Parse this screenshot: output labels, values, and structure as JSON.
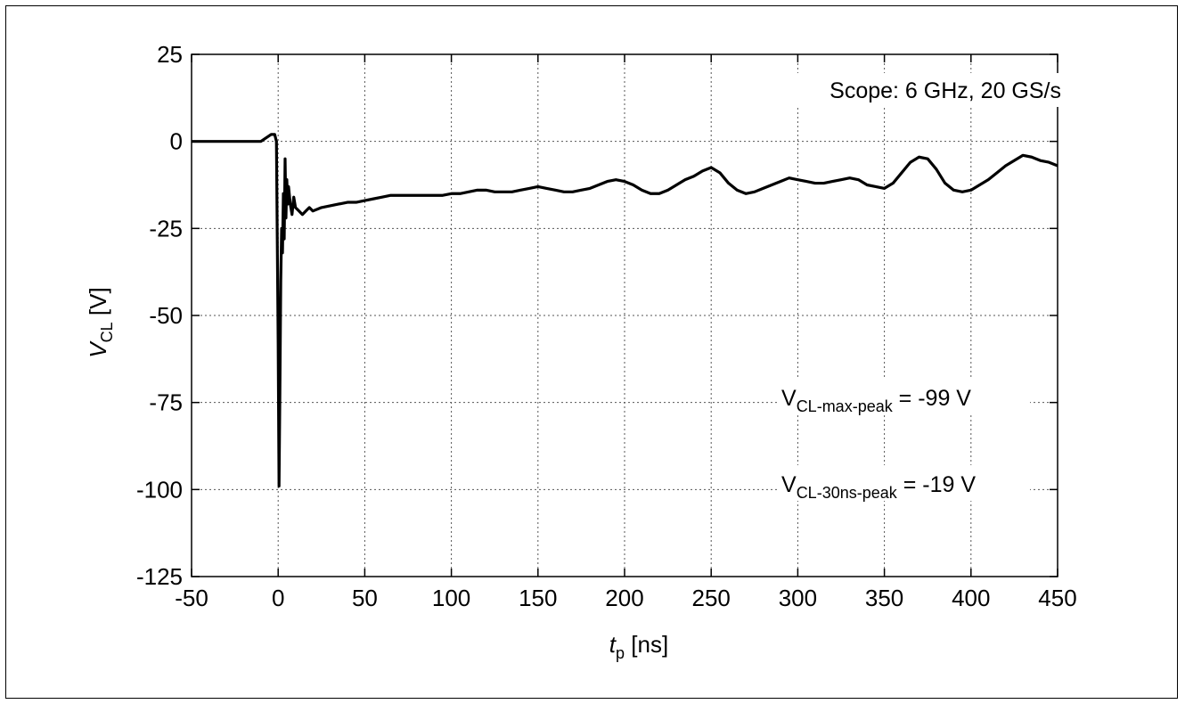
{
  "chart_data": {
    "type": "line",
    "xlabel": {
      "main": "t",
      "sub": "p",
      "unit": " [ns]"
    },
    "ylabel": {
      "main": "V",
      "sub": "CL",
      "unit": " [V]"
    },
    "xlim": [
      -50,
      450
    ],
    "ylim": [
      -125,
      25
    ],
    "xticks": [
      -50,
      0,
      50,
      100,
      150,
      200,
      250,
      300,
      350,
      400,
      450
    ],
    "yticks": [
      -125,
      -100,
      -75,
      -50,
      -25,
      0,
      25
    ],
    "grid": true,
    "line_color": "#000000",
    "annotations": [
      {
        "id": "scope",
        "text": "Scope: 6 GHz, 20 GS/s"
      },
      {
        "id": "max-peak",
        "main": "V",
        "sub": "CL-max-peak",
        "rest": " = -99 V"
      },
      {
        "id": "30ns-peak",
        "main": "V",
        "sub": "CL-30ns-peak",
        "rest": " = -19 V"
      }
    ],
    "series": [
      {
        "x": [
          -50,
          -40,
          -30,
          -20,
          -10,
          -4,
          -2,
          -1,
          0,
          0.5,
          1,
          1.5,
          2,
          2.5,
          3,
          3.5,
          4,
          4.5,
          5,
          5.5,
          6,
          7,
          8,
          9,
          10,
          12,
          14,
          16,
          18,
          20,
          25,
          30,
          35,
          40,
          45,
          50,
          55,
          60,
          65,
          70,
          75,
          80,
          85,
          90,
          95,
          100,
          105,
          110,
          115,
          120,
          125,
          130,
          135,
          140,
          145,
          150,
          155,
          160,
          165,
          170,
          175,
          180,
          185,
          190,
          195,
          200,
          205,
          210,
          215,
          220,
          225,
          230,
          235,
          240,
          245,
          250,
          255,
          260,
          265,
          270,
          275,
          280,
          285,
          290,
          295,
          300,
          305,
          310,
          315,
          320,
          325,
          330,
          335,
          340,
          345,
          350,
          355,
          360,
          365,
          370,
          375,
          380,
          385,
          390,
          395,
          400,
          405,
          410,
          415,
          420,
          425,
          430,
          435,
          440,
          445,
          450
        ],
        "y": [
          0,
          0,
          0,
          0,
          0,
          2,
          2,
          0,
          -58,
          -99,
          -72,
          -40,
          -25,
          -32,
          -15,
          -28,
          -5,
          -22,
          -11,
          -18,
          -13,
          -18,
          -21,
          -16,
          -19,
          -20,
          -21,
          -20,
          -19,
          -20,
          -19,
          -18.5,
          -18,
          -17.5,
          -17.5,
          -17,
          -16.5,
          -16,
          -15.5,
          -15.5,
          -15.5,
          -15.5,
          -15.5,
          -15.5,
          -15.5,
          -15,
          -15,
          -14.5,
          -14,
          -14,
          -14.5,
          -14.5,
          -14.5,
          -14,
          -13.5,
          -13,
          -13.5,
          -14,
          -14.5,
          -14.5,
          -14,
          -13.5,
          -12.5,
          -11.5,
          -11,
          -11.5,
          -12.5,
          -14,
          -15,
          -15,
          -14,
          -12.5,
          -11,
          -10,
          -8.5,
          -7.5,
          -9,
          -12,
          -14,
          -15,
          -14.5,
          -13.5,
          -12.5,
          -11.5,
          -10.5,
          -11,
          -11.5,
          -12,
          -12,
          -11.5,
          -11,
          -10.5,
          -11,
          -12.5,
          -13,
          -13.5,
          -12,
          -9,
          -6,
          -4.5,
          -5,
          -8,
          -12,
          -14,
          -14.5,
          -14,
          -12.5,
          -11,
          -9,
          -7,
          -5.5,
          -4,
          -4.5,
          -5.5,
          -6,
          -7
        ]
      }
    ]
  }
}
